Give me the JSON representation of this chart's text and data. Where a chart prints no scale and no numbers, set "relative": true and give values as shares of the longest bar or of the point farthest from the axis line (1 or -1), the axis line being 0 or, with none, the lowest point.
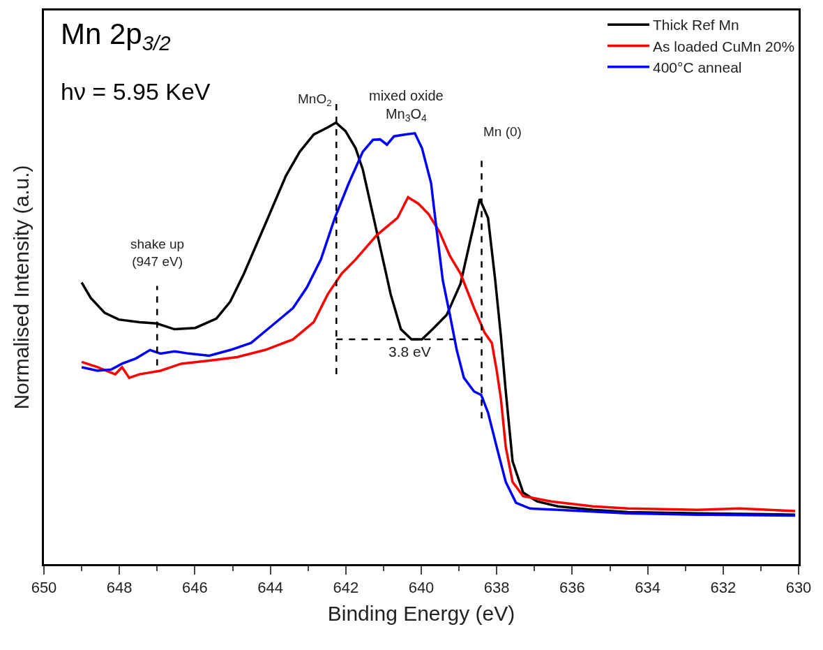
{
  "chart_data": {
    "type": "line",
    "relative": true,
    "title": "Mn 2p$_{3/2}$",
    "subtitle": "hν = 5.95 KeV",
    "xlabel": "Binding Energy (eV)",
    "ylabel": "Normalised Intensity (a.u.)",
    "xlim": [
      650,
      630
    ],
    "xticks": [
      650,
      648,
      646,
      644,
      642,
      640,
      638,
      636,
      634,
      632,
      630
    ],
    "legend": "top right",
    "line_style": "solid",
    "marker": "none",
    "series": [
      {
        "type": "line",
        "color": "#000000",
        "line_style": "dashed",
        "x": [
          642.25,
          638.4
        ],
        "values": [
          0.509,
          0.509
        ]
      },
      {
        "name": "Thick Ref Mn",
        "color": "#000000",
        "x": [
          649.0,
          648.76,
          648.39,
          648.02,
          647.47,
          647.01,
          646.54,
          645.99,
          645.43,
          645.06,
          644.7,
          644.14,
          643.59,
          643.22,
          642.85,
          642.48,
          642.26,
          642.01,
          641.74,
          641.55,
          641.18,
          640.81,
          640.54,
          640.26,
          639.98,
          639.7,
          639.33,
          638.96,
          638.69,
          638.45,
          638.23,
          638.04,
          637.89,
          637.76,
          637.58,
          637.3,
          636.93,
          636.38,
          635.45,
          634.53,
          632.68,
          630.83,
          630.09
        ],
        "values": [
          0.638,
          0.603,
          0.569,
          0.554,
          0.548,
          0.545,
          0.532,
          0.535,
          0.556,
          0.595,
          0.658,
          0.769,
          0.879,
          0.934,
          0.973,
          0.989,
          1.0,
          0.981,
          0.942,
          0.894,
          0.753,
          0.611,
          0.532,
          0.509,
          0.509,
          0.532,
          0.564,
          0.635,
          0.737,
          0.827,
          0.784,
          0.643,
          0.517,
          0.391,
          0.233,
          0.162,
          0.142,
          0.131,
          0.123,
          0.118,
          0.115,
          0.113,
          0.112
        ]
      },
      {
        "name": "As loaded CuMn 20%",
        "color": "#ff0000",
        "x": [
          649.0,
          648.58,
          648.11,
          647.93,
          647.74,
          647.47,
          646.91,
          646.36,
          645.62,
          644.88,
          644.14,
          643.4,
          642.85,
          642.48,
          642.11,
          641.74,
          641.18,
          640.63,
          640.35,
          640.07,
          639.8,
          639.52,
          639.24,
          638.96,
          638.6,
          638.32,
          638.13,
          638.0,
          637.89,
          637.76,
          637.58,
          637.3,
          636.56,
          635.45,
          634.53,
          632.68,
          631.57,
          630.09
        ],
        "values": [
          0.458,
          0.446,
          0.43,
          0.446,
          0.422,
          0.43,
          0.438,
          0.454,
          0.461,
          0.469,
          0.485,
          0.509,
          0.548,
          0.611,
          0.658,
          0.69,
          0.745,
          0.784,
          0.831,
          0.816,
          0.792,
          0.753,
          0.698,
          0.658,
          0.58,
          0.524,
          0.501,
          0.438,
          0.375,
          0.265,
          0.186,
          0.154,
          0.142,
          0.131,
          0.126,
          0.123,
          0.126,
          0.12
        ]
      },
      {
        "name": "400°C anneal",
        "color": "#0000ff",
        "x": [
          649.0,
          648.58,
          648.21,
          647.93,
          647.56,
          647.19,
          646.91,
          646.54,
          646.17,
          645.62,
          645.06,
          644.51,
          643.96,
          643.4,
          643.03,
          642.66,
          642.29,
          641.92,
          641.55,
          641.28,
          641.09,
          640.91,
          640.72,
          640.44,
          640.17,
          639.98,
          639.74,
          639.61,
          639.43,
          639.24,
          639.06,
          638.87,
          638.6,
          638.41,
          638.23,
          638.0,
          637.76,
          637.49,
          637.12,
          636.38,
          634.53,
          632.68,
          630.09
        ],
        "values": [
          0.446,
          0.438,
          0.441,
          0.454,
          0.466,
          0.485,
          0.477,
          0.482,
          0.477,
          0.472,
          0.485,
          0.501,
          0.54,
          0.58,
          0.627,
          0.69,
          0.784,
          0.863,
          0.934,
          0.961,
          0.962,
          0.95,
          0.969,
          0.973,
          0.976,
          0.942,
          0.863,
          0.769,
          0.643,
          0.564,
          0.485,
          0.422,
          0.391,
          0.383,
          0.343,
          0.265,
          0.186,
          0.139,
          0.126,
          0.123,
          0.115,
          0.112,
          0.11
        ]
      }
    ],
    "ref_lines": [
      {
        "axis": "x",
        "value": 642.25,
        "label": "MnO$_{2}$",
        "line_style": "dashed",
        "color": "#000000"
      },
      {
        "axis": "x",
        "value": 638.4,
        "label": "Mn (0)",
        "line_style": "dashed",
        "color": "#000000"
      },
      {
        "axis": "x",
        "value": 647,
        "label": "shake up\n(947 eV)",
        "line_style": "dashed",
        "color": "#000000"
      }
    ],
    "annotations": [
      {
        "text": "mixed oxide\nMn$_{3}$O$_{4}$",
        "x": 640.4,
        "y": 0.976
      },
      {
        "text": "3.8 eV",
        "x": 640.3,
        "y": 0.509
      }
    ]
  }
}
